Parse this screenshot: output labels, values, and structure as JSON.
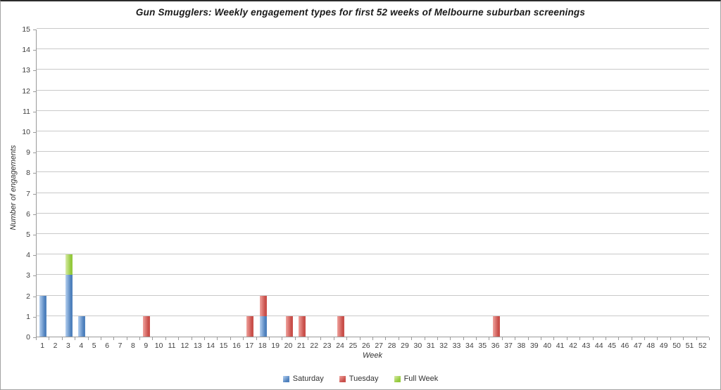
{
  "chart_data": {
    "type": "bar",
    "stacked": true,
    "title": "Gun Smugglers: Weekly engagement types for first 52 weeks of Melbourne suburban screenings",
    "xlabel": "Week",
    "ylabel": "Number of engagements",
    "weeks": 52,
    "ylim": [
      0,
      15
    ],
    "y_tick_step": 1,
    "grid": "horizontal",
    "legend_position": "bottom-center",
    "categories": [
      1,
      2,
      3,
      4,
      5,
      6,
      7,
      8,
      9,
      10,
      11,
      12,
      13,
      14,
      15,
      16,
      17,
      18,
      19,
      20,
      21,
      22,
      23,
      24,
      25,
      26,
      27,
      28,
      29,
      30,
      31,
      32,
      33,
      34,
      35,
      36,
      37,
      38,
      39,
      40,
      41,
      42,
      43,
      44,
      45,
      46,
      47,
      48,
      49,
      50,
      51,
      52
    ],
    "series": [
      {
        "name": "Saturday",
        "color": "#4f81bd",
        "color_light": "#b5d0f0",
        "values": [
          2,
          0,
          3,
          1,
          0,
          0,
          0,
          0,
          0,
          0,
          0,
          0,
          0,
          0,
          0,
          0,
          0,
          1,
          0,
          0,
          0,
          0,
          0,
          0,
          0,
          0,
          0,
          0,
          0,
          0,
          0,
          0,
          0,
          0,
          0,
          0,
          0,
          0,
          0,
          0,
          0,
          0,
          0,
          0,
          0,
          0,
          0,
          0,
          0,
          0,
          0,
          0
        ]
      },
      {
        "name": "Tuesday",
        "color": "#c9504b",
        "color_light": "#f0a39e",
        "values": [
          0,
          0,
          0,
          0,
          0,
          0,
          0,
          0,
          1,
          0,
          0,
          0,
          0,
          0,
          0,
          0,
          1,
          1,
          0,
          1,
          1,
          0,
          0,
          1,
          0,
          0,
          0,
          0,
          0,
          0,
          0,
          0,
          0,
          0,
          0,
          1,
          0,
          0,
          0,
          0,
          0,
          0,
          0,
          0,
          0,
          0,
          0,
          0,
          0,
          0,
          0,
          0
        ]
      },
      {
        "name": "Full Week",
        "color": "#94c93d",
        "color_light": "#d9eca6",
        "values": [
          0,
          0,
          1,
          0,
          0,
          0,
          0,
          0,
          0,
          0,
          0,
          0,
          0,
          0,
          0,
          0,
          0,
          0,
          0,
          0,
          0,
          0,
          0,
          0,
          0,
          0,
          0,
          0,
          0,
          0,
          0,
          0,
          0,
          0,
          0,
          0,
          0,
          0,
          0,
          0,
          0,
          0,
          0,
          0,
          0,
          0,
          0,
          0,
          0,
          0,
          0,
          0
        ]
      }
    ]
  }
}
